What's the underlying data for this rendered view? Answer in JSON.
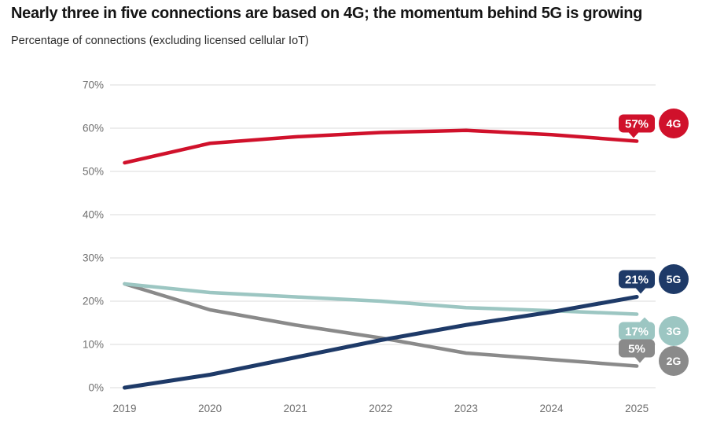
{
  "page": {
    "title": "Nearly three in five connections are based on 4G; the momentum behind 5G is growing",
    "subtitle": "Percentage of connections (excluding licensed cellular IoT)"
  },
  "colors": {
    "grid": "#dbdbdb",
    "tick_text": "#6f6f6f",
    "title_text": "#141414",
    "background": "#ffffff"
  },
  "chart_data": {
    "type": "line",
    "title": "Nearly three in five connections are based on 4G; the momentum behind 5G is growing",
    "subtitle": "Percentage of connections (excluding licensed cellular IoT)",
    "x": [
      "2019",
      "2020",
      "2021",
      "2022",
      "2023",
      "2024",
      "2025"
    ],
    "xlabel": "",
    "ylabel": "Percentage of connections",
    "ylim": [
      0,
      70
    ],
    "yticks": [
      0,
      10,
      20,
      30,
      40,
      50,
      60,
      70
    ],
    "ytick_suffix": "%",
    "grid": "horizontal",
    "legend_position": "right-of-line-ends",
    "series": [
      {
        "name": "4G",
        "color": "#d0112b",
        "values": [
          52,
          56.5,
          58,
          59,
          59.5,
          58.5,
          57
        ],
        "end_label": "57%",
        "label_tail": "down"
      },
      {
        "name": "5G",
        "color": "#1e3a68",
        "values": [
          0,
          3,
          7,
          11,
          14.5,
          17.5,
          21
        ],
        "end_label": "21%",
        "label_tail": "down"
      },
      {
        "name": "3G",
        "color": "#9cc6c2",
        "values": [
          24,
          22,
          21,
          20,
          18.5,
          17.8,
          17
        ],
        "end_label": "17%",
        "label_tail": "up"
      },
      {
        "name": "2G",
        "color": "#8a8a8a",
        "values": [
          24,
          18,
          14.5,
          11.5,
          8,
          6.5,
          5
        ],
        "end_label": "5%",
        "label_tail": "down"
      }
    ]
  }
}
